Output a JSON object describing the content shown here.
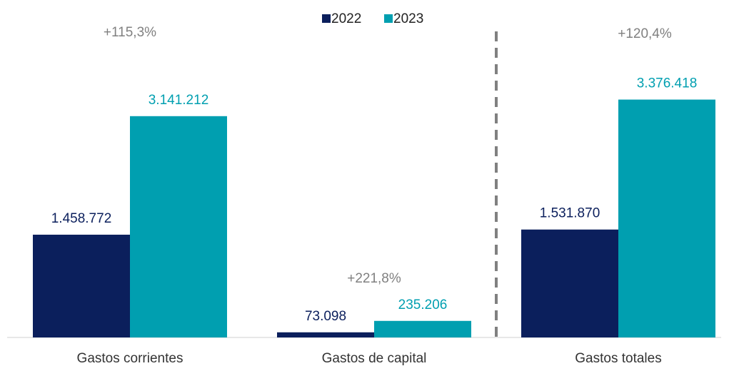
{
  "chart_data": {
    "type": "bar",
    "categories": [
      "Gastos corrientes",
      "Gastos de capital",
      "Gastos totales"
    ],
    "series": [
      {
        "name": "2022",
        "color": "#0b1f5c",
        "values": [
          1458772,
          73098,
          1531870
        ],
        "value_labels": [
          "1.458.772",
          "73.098",
          "1.531.870"
        ]
      },
      {
        "name": "2023",
        "color": "#009fb0",
        "values": [
          3141212,
          235206,
          3376418
        ],
        "value_labels": [
          "3.141.212",
          "235.206",
          "3.376.418"
        ]
      }
    ],
    "annotations": [
      "+115,3%",
      "+221,8%",
      "+120,4%"
    ],
    "ylim": [
      0,
      4000000
    ]
  }
}
